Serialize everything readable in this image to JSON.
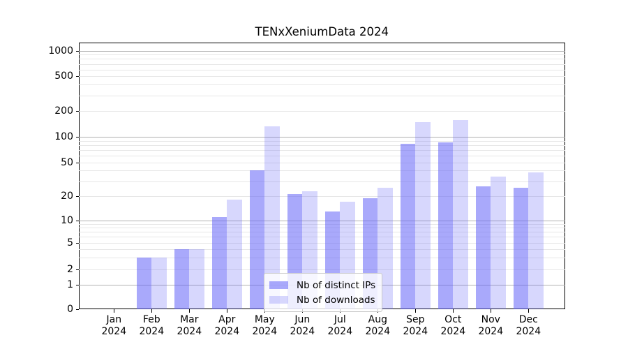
{
  "figure": {
    "background": "#ffffff"
  },
  "chart_data": {
    "type": "bar",
    "title": "TENxXeniumData 2024",
    "categories": [
      "Jan 2024",
      "Feb 2024",
      "Mar 2024",
      "Apr 2024",
      "May 2024",
      "Jun 2024",
      "Jul 2024",
      "Aug 2024",
      "Sep 2024",
      "Oct 2024",
      "Nov 2024",
      "Dec 2024"
    ],
    "category_month_lines": [
      "Jan",
      "Feb",
      "Mar",
      "Apr",
      "May",
      "Jun",
      "Jul",
      "Aug",
      "Sep",
      "Oct",
      "Nov",
      "Dec"
    ],
    "category_year_line": "2024",
    "series": [
      {
        "name": "Nb of distinct IPs",
        "base_color": "#6565f7",
        "alpha": 0.56,
        "values": [
          0,
          3,
          4,
          11,
          40,
          21,
          13,
          19,
          83,
          86,
          26,
          25
        ]
      },
      {
        "name": "Nb of downloads",
        "base_color": "#6565f7",
        "alpha": 0.26,
        "values": [
          0,
          3,
          4,
          18,
          133,
          23,
          17,
          25,
          150,
          157,
          34,
          38
        ]
      }
    ],
    "yscale": "symlog",
    "ylabel": "",
    "xlabel": "",
    "ytick_values": [
      0,
      1,
      2,
      5,
      10,
      20,
      50,
      100,
      200,
      500,
      1000
    ],
    "ytick_labels": [
      "0",
      "1",
      "2",
      "5",
      "10",
      "20",
      "50",
      "100",
      "200",
      "500",
      "1000"
    ],
    "ylim": [
      0,
      1250
    ],
    "grid": true,
    "legend_position": "lower-center"
  },
  "colors": {
    "major_grid": "#b0b0b0",
    "minor_grid": "#e7e7e7",
    "axis_line": "#000000",
    "legend_border": "#c9c9c9",
    "legend_background": "rgba(255,255,255,0.8)"
  }
}
